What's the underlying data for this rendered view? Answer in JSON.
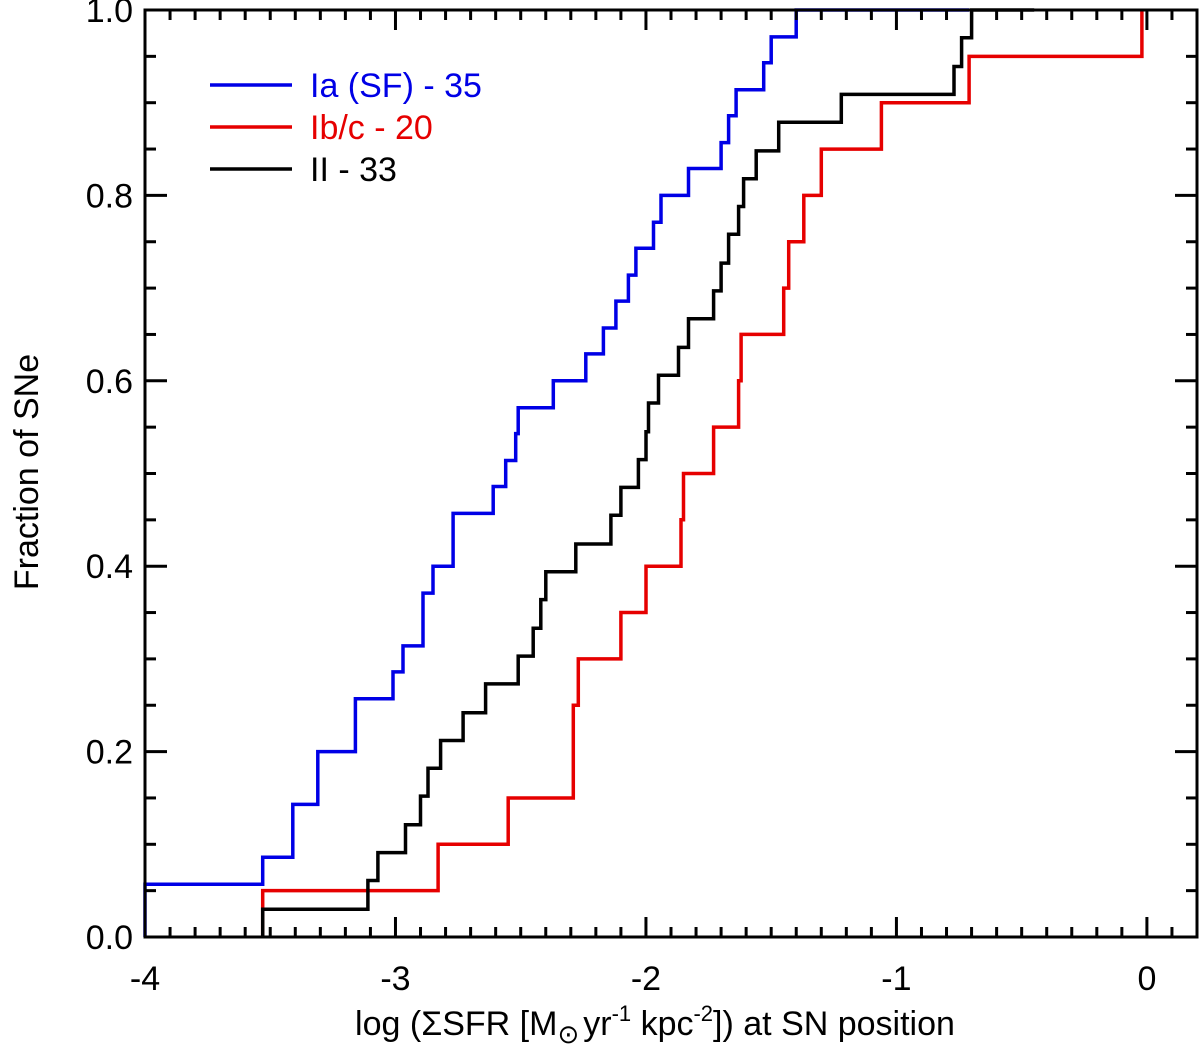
{
  "chart_data": {
    "type": "line",
    "step": true,
    "title": "",
    "xlabel": {
      "prefix": "log (",
      "sigma": "Σ",
      "sfr": "SFR [M",
      "sun": "⊙",
      "yr": "yr",
      "yr_exp": "-1",
      "kpc": " kpc",
      "kpc_exp": "-2",
      "suffix": "]) at SN position"
    },
    "ylabel": "Fraction of SNe",
    "xlim": [
      -4.0,
      0.2
    ],
    "ylim": [
      0.0,
      1.0
    ],
    "x_ticks": [
      {
        "value": -4,
        "label": "-4"
      },
      {
        "value": -3,
        "label": "-3"
      },
      {
        "value": -2,
        "label": "-2"
      },
      {
        "value": -1,
        "label": "-1"
      },
      {
        "value": 0,
        "label": "0"
      }
    ],
    "y_ticks": [
      {
        "value": 0.0,
        "label": "0.0"
      },
      {
        "value": 0.2,
        "label": "0.2"
      },
      {
        "value": 0.4,
        "label": "0.4"
      },
      {
        "value": 0.6,
        "label": "0.6"
      },
      {
        "value": 0.8,
        "label": "0.8"
      },
      {
        "value": 1.0,
        "label": "1.0"
      }
    ],
    "legend_position": "top-left",
    "series": [
      {
        "name": "Ia (SF) - 35",
        "color": "#0000e6",
        "x": [
          -4.0,
          -3.53,
          -3.41,
          -3.31,
          -3.16,
          -3.01,
          -2.97,
          -2.89,
          -2.85,
          -2.77,
          -2.61,
          -2.56,
          -2.52,
          -2.51,
          -2.37,
          -2.24,
          -2.17,
          -2.12,
          -2.07,
          -2.04,
          -1.97,
          -1.94,
          -1.83,
          -1.7,
          -1.67,
          -1.64,
          -1.53,
          -1.5,
          -1.4,
          -1.19,
          -1.09,
          -0.93,
          -0.72,
          -0.71
        ],
        "y": [
          0.057,
          0.086,
          0.143,
          0.2,
          0.257,
          0.286,
          0.314,
          0.371,
          0.4,
          0.457,
          0.486,
          0.514,
          0.543,
          0.571,
          0.6,
          0.629,
          0.657,
          0.686,
          0.714,
          0.743,
          0.771,
          0.8,
          0.829,
          0.857,
          0.886,
          0.914,
          0.943,
          0.971,
          1.0,
          1.0,
          1.0,
          1.0,
          1.0,
          1.0
        ]
      },
      {
        "name": "Ib/c - 20",
        "color": "#e60000",
        "x": [
          -3.53,
          -2.83,
          -2.55,
          -2.29,
          -2.27,
          -2.1,
          -2.0,
          -1.86,
          -1.85,
          -1.73,
          -1.63,
          -1.62,
          -1.45,
          -1.43,
          -1.37,
          -1.3,
          -1.23,
          -1.06,
          -0.92,
          -0.71,
          -0.69,
          -0.02
        ],
        "y": [
          0.05,
          0.1,
          0.15,
          0.25,
          0.3,
          0.35,
          0.4,
          0.45,
          0.5,
          0.55,
          0.6,
          0.65,
          0.7,
          0.75,
          0.8,
          0.85,
          0.85,
          0.9,
          0.9,
          0.95,
          0.95,
          1.0
        ]
      },
      {
        "name": "II - 33",
        "color": "#000000",
        "x": [
          -3.53,
          -3.11,
          -3.07,
          -2.96,
          -2.9,
          -2.87,
          -2.82,
          -2.73,
          -2.64,
          -2.51,
          -2.45,
          -2.42,
          -2.4,
          -2.28,
          -2.14,
          -2.1,
          -2.03,
          -2.0,
          -1.99,
          -1.95,
          -1.87,
          -1.83,
          -1.73,
          -1.7,
          -1.67,
          -1.63,
          -1.61,
          -1.56,
          -1.55,
          -1.47,
          -1.35,
          -1.22,
          -0.97,
          -0.77,
          -0.74,
          -0.7,
          -0.45
        ],
        "y": [
          0.03,
          0.061,
          0.091,
          0.121,
          0.152,
          0.182,
          0.212,
          0.242,
          0.273,
          0.303,
          0.333,
          0.364,
          0.394,
          0.424,
          0.455,
          0.485,
          0.515,
          0.545,
          0.576,
          0.606,
          0.636,
          0.667,
          0.697,
          0.727,
          0.758,
          0.788,
          0.818,
          0.848,
          0.848,
          0.879,
          0.879,
          0.909,
          0.909,
          0.939,
          0.97,
          1.0,
          1.0
        ]
      }
    ]
  }
}
